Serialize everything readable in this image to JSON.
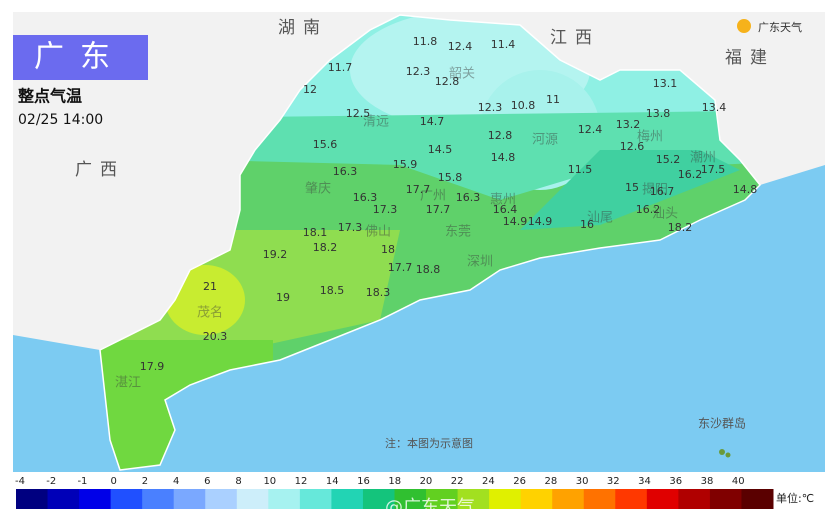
{
  "header": {
    "title": "广东",
    "subtitle": "整点气温",
    "time": "02/25 14:00",
    "logo": "广东天气"
  },
  "provinces": [
    "湖南",
    "江西",
    "福建",
    "广西"
  ],
  "cities": [
    "韶关",
    "清远",
    "河源",
    "梅州",
    "潮州",
    "揭阳",
    "汕头",
    "汕尾",
    "惠州",
    "肇庆",
    "广州",
    "佛山",
    "东莞",
    "深圳",
    "茂名",
    "湛江"
  ],
  "readings": [
    11.8,
    12.4,
    11.4,
    11.7,
    12.3,
    12.8,
    12,
    12.3,
    10.8,
    11,
    13.1,
    13.8,
    13.4,
    12.5,
    14.7,
    12.8,
    12.4,
    13.2,
    12.6,
    15.6,
    14.5,
    14.8,
    15.2,
    16.3,
    15.9,
    15.8,
    11.5,
    16.2,
    17.5,
    16.3,
    17.7,
    16.3,
    15,
    16.7,
    14.8,
    17.3,
    17.7,
    16.4,
    14.9,
    14.9,
    16,
    16.2,
    18.2,
    18.1,
    17.3,
    18.2,
    18,
    19.2,
    17.7,
    18.8,
    21,
    19,
    18.5,
    18.3,
    20.3,
    17.9
  ],
  "note": "注：本图为示意图",
  "islands": "东沙群岛",
  "watermark": "@广东天气",
  "legend": {
    "ticks": [
      -4,
      -2,
      -1,
      0,
      2,
      4,
      6,
      8,
      10,
      12,
      14,
      16,
      18,
      20,
      22,
      24,
      26,
      28,
      30,
      32,
      34,
      36,
      38,
      40
    ],
    "unit": "单位:℃",
    "colors": [
      "#000080",
      "#0000b8",
      "#0000e8",
      "#2050ff",
      "#4a80ff",
      "#7aa8ff",
      "#aad0ff",
      "#cdeefa",
      "#a6f2f0",
      "#66e8da",
      "#22d4b4",
      "#14c47c",
      "#30c030",
      "#62d020",
      "#a2e020",
      "#e0f000",
      "#ffd200",
      "#ffa200",
      "#ff7200",
      "#ff3800",
      "#e00000",
      "#b00000",
      "#800000",
      "#5a0000"
    ]
  }
}
